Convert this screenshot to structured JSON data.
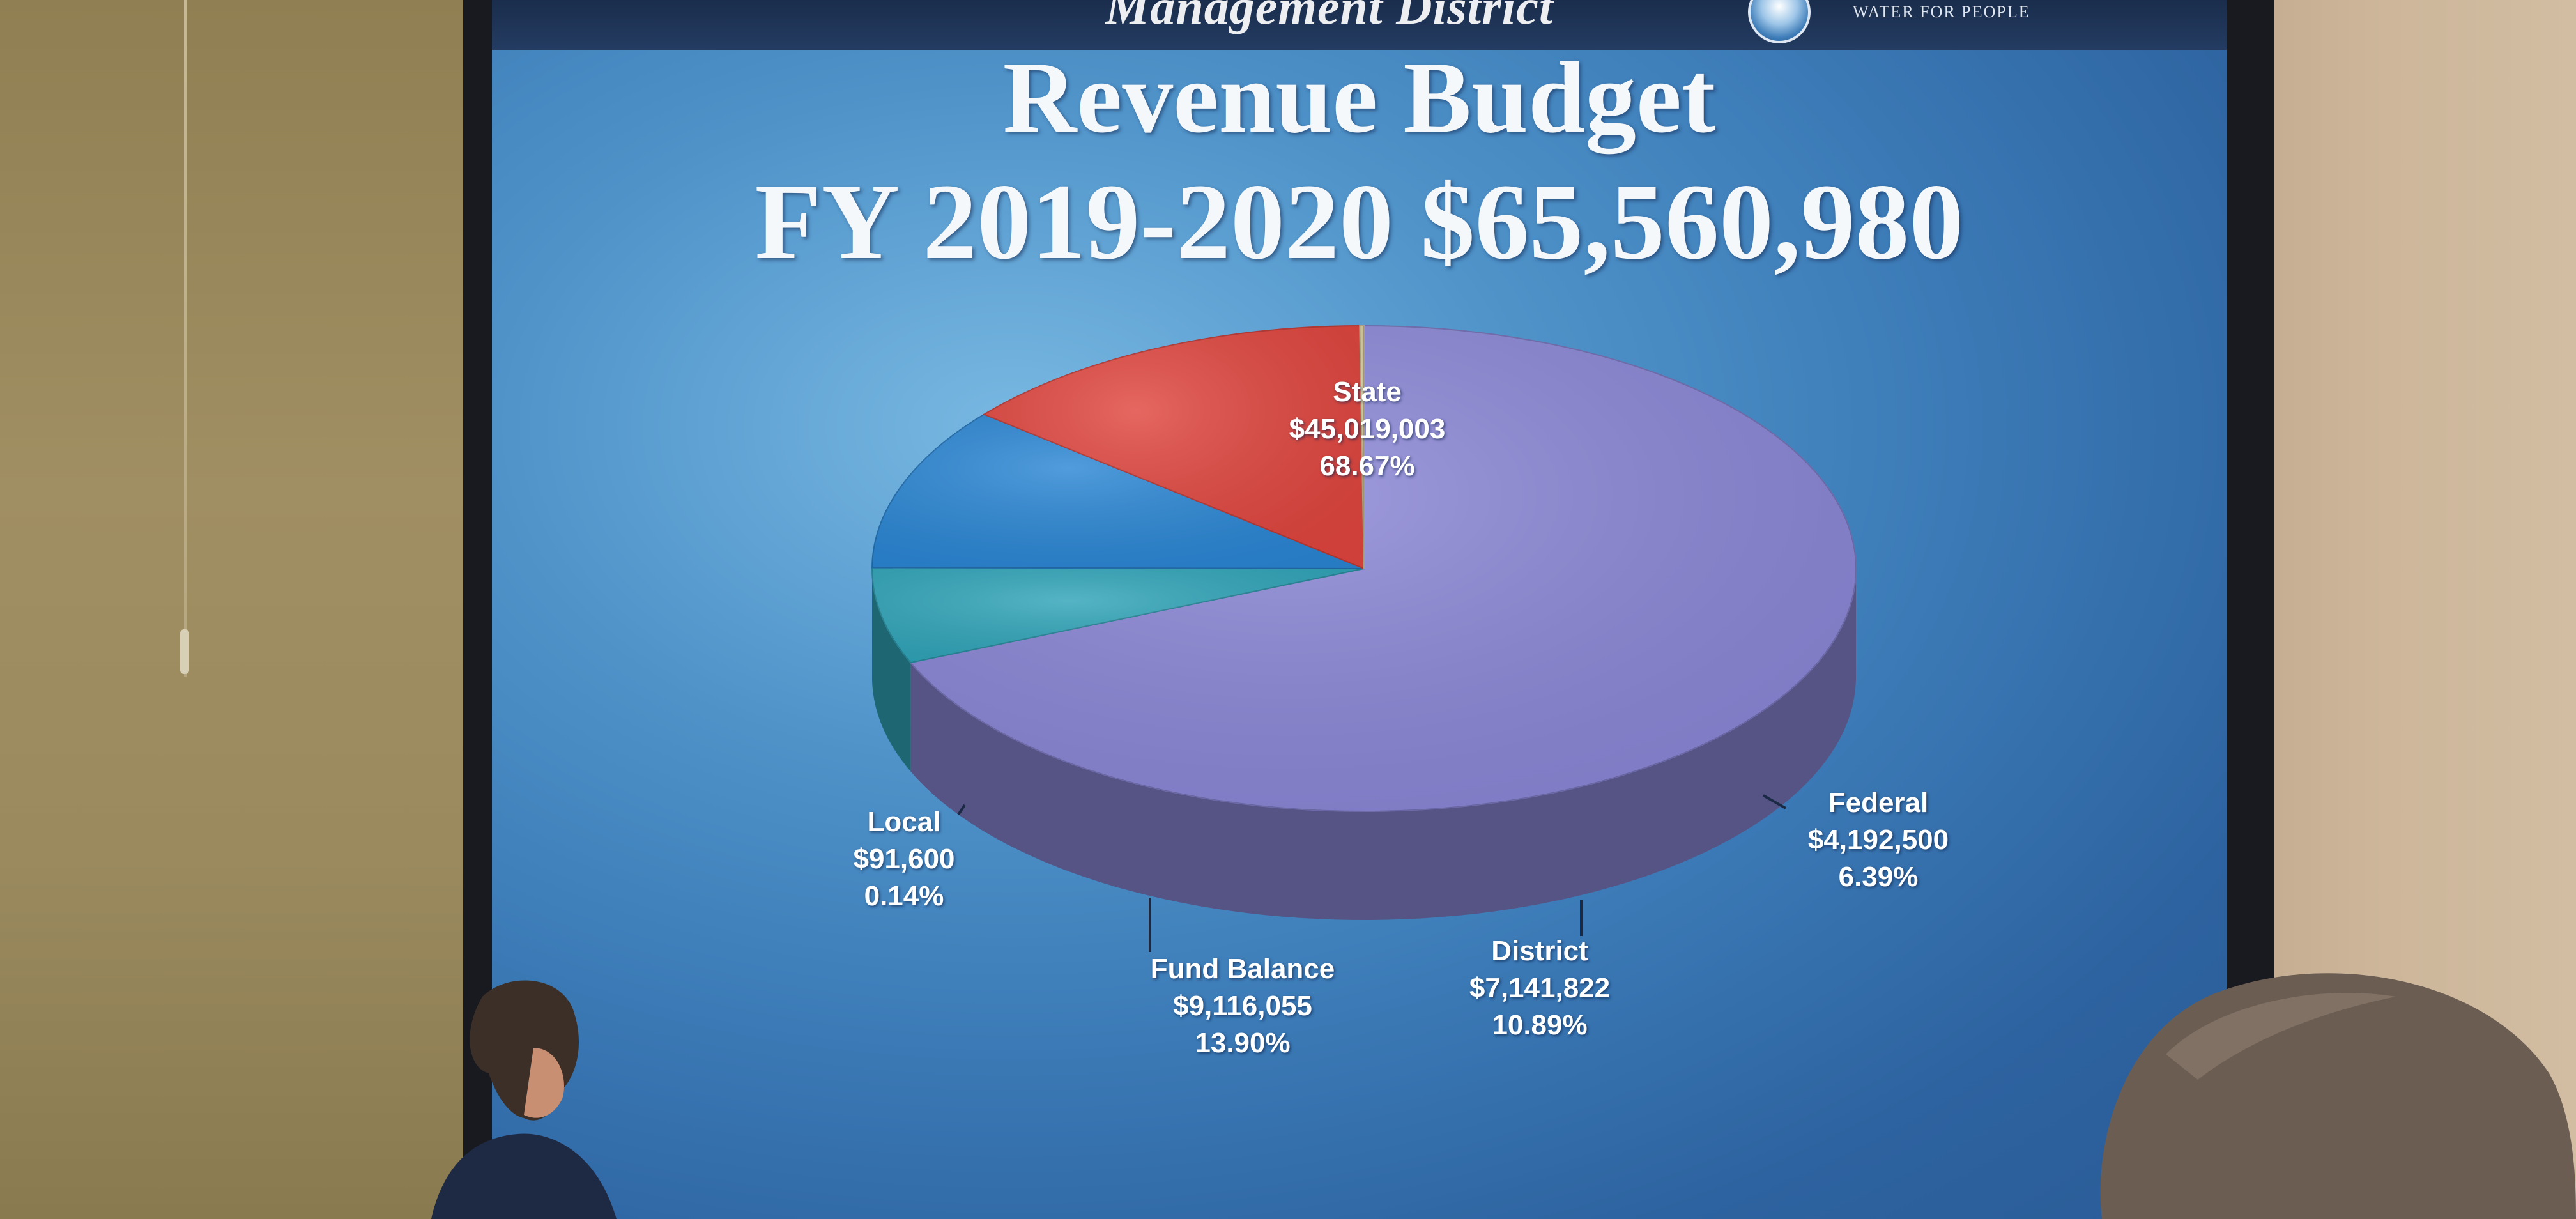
{
  "banner": {
    "title_fragment": "Management District",
    "logo_text": "WATER FOR PEOPLE"
  },
  "slide": {
    "title_line1": "Revenue Budget",
    "title_line2": "FY 2019-2020 $65,560,980"
  },
  "chart_data": {
    "type": "pie",
    "title": "Revenue Budget FY 2019-2020 $65,560,980",
    "slices": [
      {
        "name": "State",
        "amount": "$45,019,003",
        "percent_label": "68.67%",
        "value": 45019003,
        "percent": 68.67,
        "color": "#8a86d6"
      },
      {
        "name": "Federal",
        "amount": "$4,192,500",
        "percent_label": "6.39%",
        "value": 4192500,
        "percent": 6.39,
        "color": "#2fa4b8"
      },
      {
        "name": "District",
        "amount": "$7,141,822",
        "percent_label": "10.89%",
        "value": 7141822,
        "percent": 10.89,
        "color": "#2a86d4"
      },
      {
        "name": "Fund Balance",
        "amount": "$9,116,055",
        "percent_label": "13.90%",
        "value": 9116055,
        "percent": 13.9,
        "color": "#e0453e"
      },
      {
        "name": "Local",
        "amount": "$91,600",
        "percent_label": "0.14%",
        "value": 91600,
        "percent": 0.14,
        "color": "#d6c89a"
      }
    ]
  }
}
